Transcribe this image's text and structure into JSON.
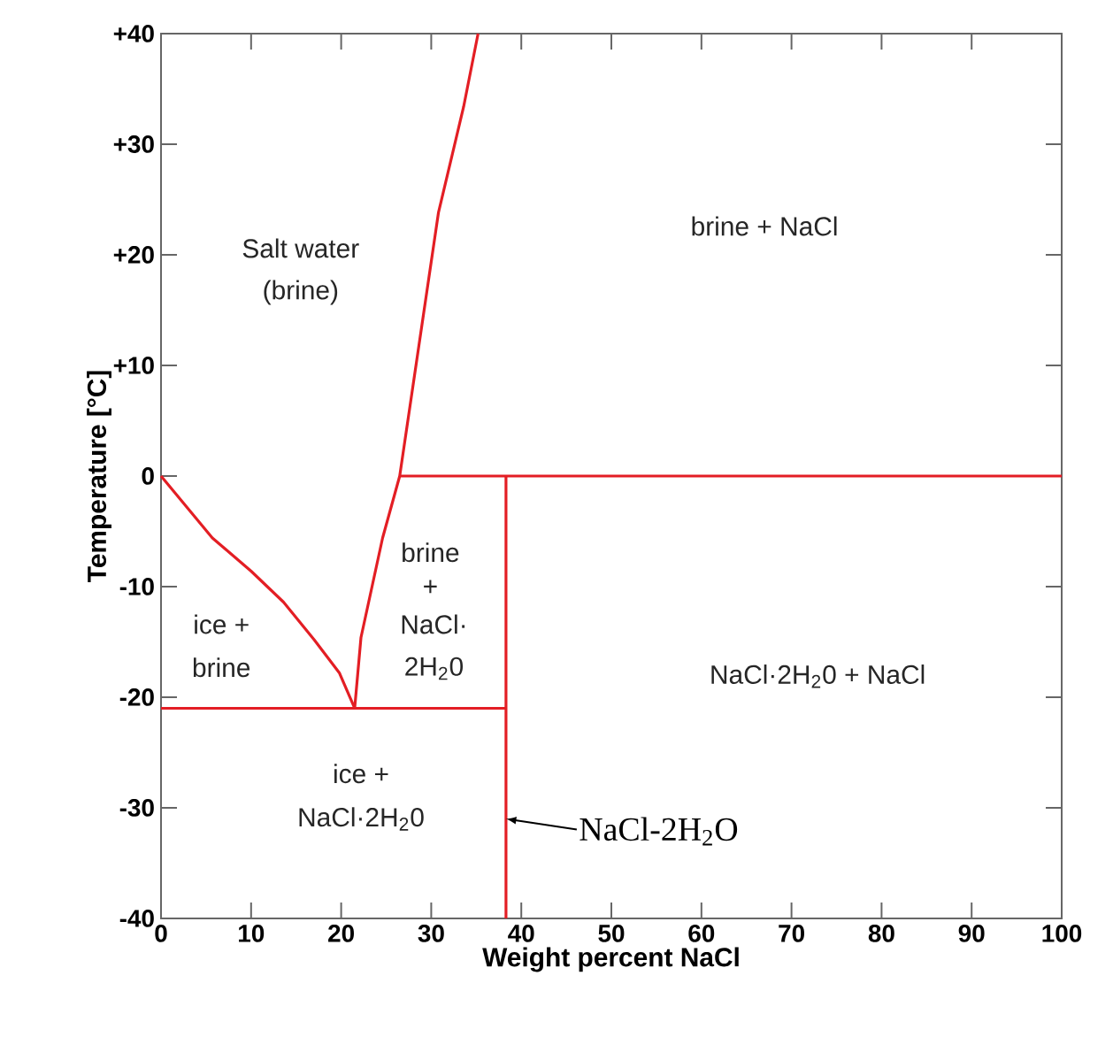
{
  "chart_data": {
    "type": "line",
    "xlabel": "Weight percent NaCl",
    "ylabel": "Temperature [°C]",
    "xlim": [
      0,
      100
    ],
    "ylim": [
      -40,
      40
    ],
    "xticks": [
      0,
      10,
      20,
      30,
      40,
      50,
      60,
      70,
      80,
      90,
      100
    ],
    "yticks": [
      -40,
      -30,
      -20,
      -10,
      0,
      {
        "value": 10,
        "label": "+10"
      },
      {
        "value": 20,
        "label": "+20"
      },
      {
        "value": 30,
        "label": "+30"
      },
      {
        "value": 40,
        "label": "+40"
      }
    ],
    "series": [
      {
        "color": "#e31e24",
        "x": [
          0,
          5.7,
          10,
          13.6,
          17,
          19.8,
          21.5
        ],
        "values": [
          0,
          -5.6,
          -8.6,
          -11.4,
          -14.8,
          -17.8,
          -21
        ]
      },
      {
        "color": "#e31e24",
        "x": [
          21.5,
          22.2,
          24.6,
          26.5,
          30.8,
          33.6,
          35.2
        ],
        "values": [
          -21,
          -14.6,
          -5.6,
          0,
          23.8,
          33.4,
          40
        ]
      },
      {
        "color": "#e31e24",
        "x": [
          26.5,
          100
        ],
        "values": [
          0,
          0
        ]
      },
      {
        "color": "#e31e24",
        "x": [
          38.3,
          38.3
        ],
        "values": [
          0,
          -40
        ]
      },
      {
        "color": "#e31e24",
        "x": [
          0,
          38.3
        ],
        "values": [
          -21,
          -21
        ]
      }
    ],
    "annotations": [
      "Salt water",
      "(brine)",
      "brine + NaCl",
      "ice +",
      "brine",
      "brine",
      "+",
      "NaCl·",
      "2H$_{2}$0",
      "NaCl·2H$_{2}$0 + NaCl",
      "ice +",
      "NaCl·2H$_{2}$0",
      {
        "text": "NaCl-2H$_{2}$O",
        "x": 38.3,
        "y": -31
      }
    ]
  }
}
